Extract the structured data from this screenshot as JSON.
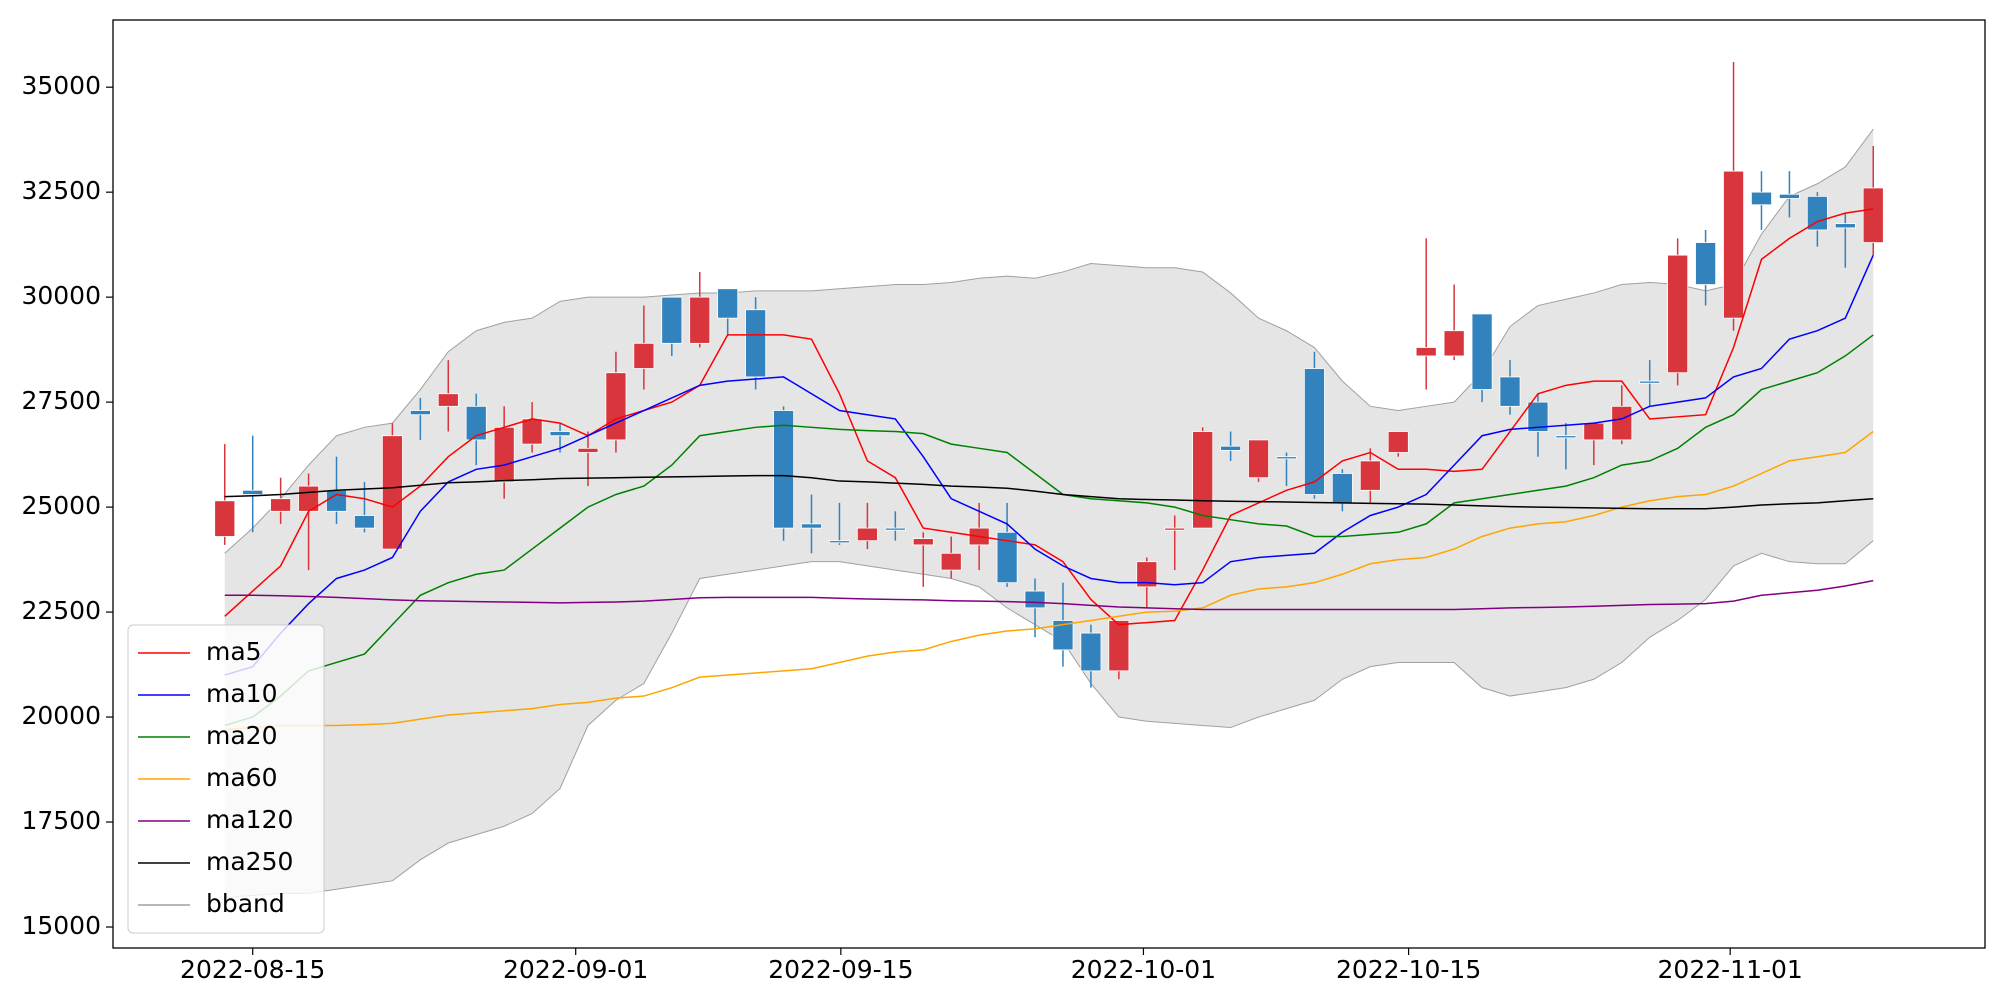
{
  "chart_data": {
    "type": "candlestick",
    "x": [
      0,
      1,
      2,
      3,
      4,
      5,
      6,
      7,
      8,
      9,
      10,
      11,
      12,
      13,
      14,
      15,
      16,
      17,
      18,
      19,
      20,
      21,
      22,
      23,
      24,
      25,
      26,
      27,
      28,
      29,
      30,
      31,
      32,
      33,
      34,
      35,
      36,
      37,
      38,
      39,
      40,
      41,
      42,
      43,
      44,
      45,
      46,
      47,
      48,
      49,
      50,
      51,
      52,
      53,
      54,
      55,
      56,
      57,
      58,
      59
    ],
    "open": [
      24300,
      25400,
      24900,
      24900,
      25400,
      24800,
      24000,
      27300,
      27400,
      27400,
      25600,
      26500,
      26800,
      26300,
      26600,
      28300,
      30000,
      28900,
      30200,
      29700,
      27300,
      24600,
      24200,
      24200,
      24500,
      24100,
      23500,
      24100,
      24400,
      23000,
      22300,
      22000,
      21100,
      23100,
      24450,
      24500,
      26450,
      25700,
      26200,
      28300,
      25800,
      25400,
      26300,
      28600,
      28600,
      29600,
      28100,
      27500,
      26700,
      26600,
      26600,
      28000,
      28200,
      31300,
      29500,
      32500,
      32450,
      32400,
      31750,
      31300
    ],
    "high": [
      26500,
      26700,
      25700,
      25800,
      26200,
      25600,
      27000,
      27600,
      28500,
      27700,
      27400,
      27500,
      27000,
      26800,
      28700,
      29800,
      30000,
      30600,
      30200,
      30000,
      27400,
      25300,
      25100,
      25100,
      24900,
      24400,
      24300,
      25100,
      25100,
      23300,
      23200,
      22200,
      22300,
      23800,
      24800,
      26900,
      26800,
      26600,
      26300,
      28700,
      25900,
      26400,
      26800,
      31400,
      30300,
      29600,
      28500,
      27700,
      27000,
      27000,
      27900,
      28500,
      31400,
      31600,
      35600,
      33000,
      33000,
      32500,
      32000,
      33600
    ],
    "low": [
      24100,
      24400,
      24600,
      23500,
      24600,
      24400,
      24000,
      26600,
      26800,
      26000,
      25200,
      26300,
      26300,
      25500,
      26300,
      27800,
      28600,
      28800,
      29100,
      27800,
      24200,
      23900,
      24100,
      24000,
      24200,
      23100,
      23300,
      23500,
      23100,
      21900,
      21200,
      20700,
      20900,
      22600,
      23500,
      24500,
      26100,
      25600,
      25500,
      25200,
      24900,
      25100,
      26200,
      27800,
      28500,
      27500,
      27200,
      26200,
      25900,
      26000,
      26500,
      27400,
      27900,
      29800,
      29200,
      31600,
      31900,
      31200,
      30700,
      31000
    ],
    "close": [
      25150,
      25300,
      25200,
      25500,
      24900,
      24500,
      26700,
      27200,
      27700,
      26600,
      26900,
      27100,
      26700,
      26400,
      28200,
      28900,
      28900,
      30000,
      29500,
      28100,
      24500,
      24500,
      24150,
      24500,
      24450,
      24250,
      23900,
      24500,
      23200,
      22600,
      21600,
      21100,
      22300,
      23700,
      24500,
      26800,
      26350,
      26600,
      26150,
      25300,
      25100,
      26100,
      26800,
      28800,
      29200,
      27800,
      27400,
      26800,
      26650,
      27000,
      27400,
      27950,
      31000,
      30300,
      33000,
      32200,
      32350,
      31600,
      31650,
      32600
    ],
    "up_color": "#d8363c",
    "down_color": "#3182bd",
    "series": [
      {
        "name": "ma5",
        "color": "#ff0000",
        "values": [
          22400,
          23000,
          23600,
          24900,
          25300,
          25200,
          25000,
          25500,
          26200,
          26700,
          26900,
          27100,
          27000,
          26700,
          27100,
          27300,
          27500,
          27900,
          29100,
          29100,
          29100,
          29000,
          27700,
          26100,
          25700,
          24500,
          24400,
          24300,
          24200,
          24100,
          23700,
          22800,
          22200,
          22250,
          22300,
          23500,
          24800,
          25100,
          25400,
          25600,
          26100,
          26300,
          25900,
          25900,
          25850,
          25900,
          26800,
          27700,
          27900,
          28000,
          28000,
          27100,
          27150,
          27200,
          28800,
          30900,
          31400,
          31800,
          32000,
          32100
        ]
      },
      {
        "name": "ma10",
        "color": "#0000ff",
        "values": [
          21000,
          21200,
          22000,
          22700,
          23300,
          23500,
          23800,
          24900,
          25600,
          25900,
          26000,
          26200,
          26400,
          26700,
          27000,
          27300,
          27600,
          27900,
          28000,
          28050,
          28100,
          27700,
          27300,
          27200,
          27100,
          26200,
          25200,
          24900,
          24600,
          24000,
          23600,
          23300,
          23200,
          23200,
          23150,
          23200,
          23700,
          23800,
          23850,
          23900,
          24400,
          24800,
          25000,
          25300,
          26000,
          26700,
          26850,
          26900,
          26950,
          27000,
          27100,
          27400,
          27500,
          27600,
          28100,
          28300,
          29000,
          29200,
          29500,
          31000
        ]
      },
      {
        "name": "ma20",
        "color": "#008000",
        "values": [
          19800,
          20000,
          20500,
          21100,
          21300,
          21500,
          22200,
          22900,
          23200,
          23400,
          23500,
          24000,
          24500,
          25000,
          25300,
          25500,
          26000,
          26700,
          26800,
          26900,
          26950,
          26900,
          26850,
          26820,
          26800,
          26750,
          26500,
          26400,
          26300,
          25800,
          25300,
          25200,
          25150,
          25100,
          25000,
          24800,
          24700,
          24600,
          24550,
          24300,
          24300,
          24350,
          24400,
          24600,
          25100,
          25200,
          25300,
          25400,
          25500,
          25700,
          26000,
          26100,
          26400,
          26900,
          27200,
          27800,
          28000,
          28200,
          28600,
          29100
        ]
      },
      {
        "name": "ma60",
        "color": "#ffa500",
        "values": [
          19700,
          19750,
          19800,
          19800,
          19800,
          19820,
          19850,
          19950,
          20050,
          20100,
          20150,
          20200,
          20300,
          20350,
          20450,
          20500,
          20700,
          20950,
          21000,
          21050,
          21100,
          21150,
          21300,
          21450,
          21550,
          21600,
          21800,
          21950,
          22050,
          22100,
          22200,
          22300,
          22400,
          22500,
          22520,
          22600,
          22900,
          23050,
          23100,
          23200,
          23400,
          23650,
          23750,
          23800,
          24000,
          24300,
          24500,
          24600,
          24650,
          24800,
          25000,
          25150,
          25250,
          25300,
          25500,
          25800,
          26100,
          26200,
          26300,
          26800
        ]
      },
      {
        "name": "ma120",
        "color": "#800080",
        "values": [
          22900,
          22900,
          22890,
          22870,
          22850,
          22820,
          22790,
          22770,
          22760,
          22750,
          22740,
          22730,
          22720,
          22730,
          22740,
          22760,
          22800,
          22840,
          22850,
          22850,
          22850,
          22850,
          22830,
          22810,
          22800,
          22790,
          22770,
          22760,
          22750,
          22730,
          22700,
          22660,
          22620,
          22600,
          22580,
          22560,
          22560,
          22560,
          22560,
          22560,
          22560,
          22560,
          22560,
          22560,
          22560,
          22580,
          22600,
          22610,
          22620,
          22640,
          22660,
          22680,
          22690,
          22700,
          22760,
          22900,
          22960,
          23020,
          23120,
          23250
        ]
      },
      {
        "name": "ma250",
        "color": "#000000",
        "values": [
          25250,
          25270,
          25300,
          25350,
          25400,
          25430,
          25460,
          25520,
          25580,
          25600,
          25630,
          25650,
          25680,
          25690,
          25700,
          25710,
          25720,
          25730,
          25740,
          25750,
          25750,
          25700,
          25620,
          25600,
          25570,
          25540,
          25500,
          25480,
          25450,
          25380,
          25300,
          25250,
          25200,
          25180,
          25170,
          25150,
          25140,
          25130,
          25120,
          25110,
          25100,
          25090,
          25080,
          25070,
          25050,
          25030,
          25010,
          25000,
          24990,
          24980,
          24970,
          24960,
          24960,
          24960,
          25000,
          25050,
          25080,
          25100,
          25150,
          25200
        ]
      }
    ],
    "bband": {
      "name": "bband",
      "color": "#a0a0a0",
      "fill": "#e5e5e5",
      "upper": [
        23900,
        24500,
        25200,
        26000,
        26700,
        26900,
        27000,
        27800,
        28700,
        29200,
        29400,
        29500,
        29900,
        30000,
        30000,
        30000,
        30050,
        30100,
        30100,
        30150,
        30150,
        30150,
        30200,
        30250,
        30300,
        30300,
        30350,
        30450,
        30500,
        30450,
        30600,
        30800,
        30750,
        30700,
        30700,
        30600,
        30100,
        29500,
        29200,
        28800,
        28000,
        27400,
        27300,
        27400,
        27500,
        28200,
        29300,
        29800,
        29950,
        30100,
        30300,
        30350,
        30300,
        30150,
        30300,
        31500,
        32400,
        32700,
        33100,
        34000
      ],
      "lower": [
        15700,
        15750,
        15800,
        15800,
        15900,
        16000,
        16100,
        16600,
        17000,
        17200,
        17400,
        17700,
        18300,
        19800,
        20400,
        20800,
        22000,
        23300,
        23400,
        23500,
        23600,
        23700,
        23700,
        23600,
        23500,
        23400,
        23300,
        23100,
        22600,
        22200,
        21800,
        20800,
        20000,
        19900,
        19850,
        19800,
        19750,
        20000,
        20200,
        20400,
        20900,
        21200,
        21300,
        21300,
        21300,
        20700,
        20500,
        20600,
        20700,
        20900,
        21300,
        21900,
        22300,
        22800,
        23600,
        23900,
        23700,
        23650,
        23650,
        24200
      ]
    },
    "xlim": [
      -4,
      63
    ],
    "xticks": [
      {
        "value": 1.0,
        "label": "2022-08-15"
      },
      {
        "value": 12.56,
        "label": "2022-09-01"
      },
      {
        "value": 22.05,
        "label": "2022-09-15"
      },
      {
        "value": 32.88,
        "label": "2022-10-01"
      },
      {
        "value": 42.37,
        "label": "2022-10-15"
      },
      {
        "value": 53.88,
        "label": "2022-11-01"
      }
    ],
    "ylim": [
      14500,
      36600
    ],
    "yticks": [
      15000,
      17500,
      20000,
      22500,
      25000,
      27500,
      30000,
      32500,
      35000
    ],
    "legend": "lower left"
  }
}
